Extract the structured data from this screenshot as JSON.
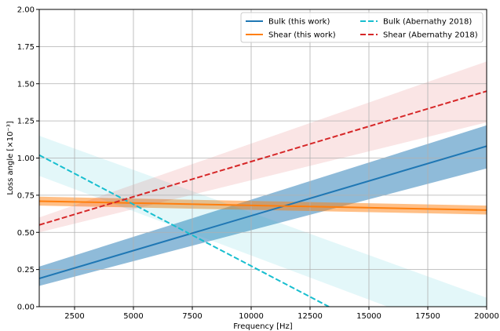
{
  "chart_data": {
    "type": "line",
    "title": "",
    "xlabel": "Frequency [Hz]",
    "ylabel": "Loss angle [×10⁻³]",
    "xlim": [
      1000,
      20000
    ],
    "ylim": [
      0,
      2.0
    ],
    "xticks": [
      2500,
      5000,
      7500,
      10000,
      12500,
      15000,
      17500,
      20000
    ],
    "yticks": [
      0.0,
      0.25,
      0.5,
      0.75,
      1.0,
      1.25,
      1.5,
      1.75,
      2.0
    ],
    "xtick_labels": [
      "2500",
      "5000",
      "7500",
      "10000",
      "12500",
      "15000",
      "17500",
      "20000"
    ],
    "ytick_labels": [
      "0.00",
      "0.25",
      "0.50",
      "0.75",
      "1.00",
      "1.25",
      "1.50",
      "1.75",
      "2.00"
    ],
    "grid": true,
    "legend_position": "top-right",
    "legend_columns": 2,
    "series": [
      {
        "name": "Bulk (this work)",
        "color": "#1f77b4",
        "dash": "solid",
        "x": [
          1000,
          20000
        ],
        "y": [
          0.19,
          1.08
        ],
        "band_lower": [
          0.14,
          0.93
        ],
        "band_upper": [
          0.27,
          1.22
        ],
        "band_color": "#1f77b4",
        "band_opacity": 0.5
      },
      {
        "name": "Shear (this work)",
        "color": "#ff7f0e",
        "dash": "solid",
        "x": [
          1000,
          20000
        ],
        "y": [
          0.71,
          0.65
        ],
        "band_lower": [
          0.68,
          0.62
        ],
        "band_upper": [
          0.74,
          0.68
        ],
        "band_color": "#ff7f0e",
        "band_opacity": 0.5
      },
      {
        "name": "Bulk (Abernathy 2018)",
        "color": "#17becf",
        "dash": "dashed",
        "x": [
          1000,
          13300
        ],
        "y": [
          1.02,
          0.0
        ],
        "band_lower": [
          0.88,
          -0.25
        ],
        "band_upper": [
          1.15,
          0.3
        ],
        "band_x": [
          1000,
          20000
        ],
        "band_lower_full": [
          0.88,
          -0.25
        ],
        "band_upper_full": [
          1.15,
          0.06
        ],
        "band_color": "#17becf",
        "band_opacity": 0.12
      },
      {
        "name": "Shear (Abernathy 2018)",
        "color": "#d62728",
        "dash": "dashed",
        "x": [
          1000,
          20000
        ],
        "y": [
          0.55,
          1.45
        ],
        "band_lower": [
          0.5,
          1.24
        ],
        "band_upper": [
          0.6,
          1.65
        ],
        "band_color": "#d62728",
        "band_opacity": 0.12
      }
    ]
  }
}
